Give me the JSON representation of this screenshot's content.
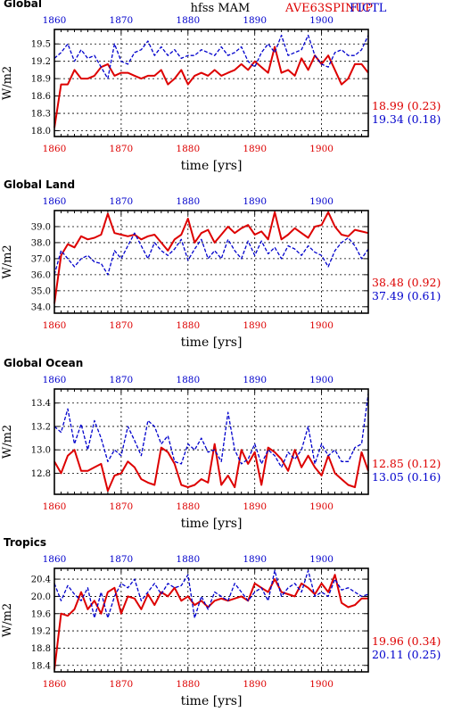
{
  "header": {
    "center": "hfss MAM",
    "right_red": "AVE63SPINUP",
    "right_blue": "FICTL"
  },
  "colors": {
    "red": "#dd0000",
    "blue": "#0000cc",
    "grid": "#000000"
  },
  "chart_data": [
    {
      "type": "line",
      "title": "Global",
      "xlabel": "time [yrs]",
      "ylabel": "W/m2",
      "xlim": [
        1860,
        1907
      ],
      "ylim": [
        17.9,
        19.75
      ],
      "xticks": [
        1860,
        1870,
        1880,
        1890,
        1900
      ],
      "yticks": [
        18.0,
        18.3,
        18.6,
        18.9,
        19.2,
        19.5
      ],
      "ytick_labels": [
        "18.0",
        "18.3",
        "18.6",
        "18.9",
        "19.2",
        "19.5"
      ],
      "grid": true,
      "x": [
        1860,
        1861,
        1862,
        1863,
        1864,
        1865,
        1866,
        1867,
        1868,
        1869,
        1870,
        1871,
        1872,
        1873,
        1874,
        1875,
        1876,
        1877,
        1878,
        1879,
        1880,
        1881,
        1882,
        1883,
        1884,
        1885,
        1886,
        1887,
        1888,
        1889,
        1890,
        1891,
        1892,
        1893,
        1894,
        1895,
        1896,
        1897,
        1898,
        1899,
        1900,
        1901,
        1902,
        1903,
        1904,
        1905,
        1906,
        1907
      ],
      "series": [
        {
          "name": "AVE63SPINUP",
          "color": "red",
          "stat": "18.99 (0.23)",
          "values": [
            18.05,
            18.8,
            18.8,
            19.05,
            18.9,
            18.9,
            18.95,
            19.1,
            19.15,
            18.95,
            19.0,
            19.0,
            18.95,
            18.9,
            18.95,
            18.95,
            19.05,
            18.8,
            18.9,
            19.05,
            18.8,
            18.95,
            19.0,
            18.95,
            19.05,
            18.95,
            19.0,
            19.05,
            19.15,
            19.05,
            19.2,
            19.1,
            19.0,
            19.45,
            19.0,
            19.05,
            18.95,
            19.25,
            19.05,
            19.3,
            19.15,
            19.3,
            19.05,
            18.8,
            18.9,
            19.15,
            19.15,
            19.0
          ]
        },
        {
          "name": "FICTL",
          "color": "blue",
          "stat": "19.34 (0.18)",
          "values": [
            19.25,
            19.35,
            19.5,
            19.2,
            19.4,
            19.25,
            19.3,
            19.1,
            18.9,
            19.5,
            19.2,
            19.15,
            19.35,
            19.4,
            19.55,
            19.3,
            19.45,
            19.3,
            19.4,
            19.25,
            19.3,
            19.3,
            19.4,
            19.35,
            19.3,
            19.45,
            19.3,
            19.35,
            19.45,
            19.2,
            19.1,
            19.35,
            19.5,
            19.35,
            19.65,
            19.3,
            19.35,
            19.4,
            19.65,
            19.3,
            19.15,
            19.1,
            19.35,
            19.4,
            19.3,
            19.3,
            19.4,
            19.65
          ]
        }
      ]
    },
    {
      "type": "line",
      "title": "Global Land",
      "xlabel": "time [yrs]",
      "ylabel": "W/m2",
      "xlim": [
        1860,
        1907
      ],
      "ylim": [
        33.6,
        40.0
      ],
      "xticks": [
        1860,
        1870,
        1880,
        1890,
        1900
      ],
      "yticks": [
        34.0,
        35.0,
        36.0,
        37.0,
        38.0,
        39.0
      ],
      "ytick_labels": [
        "34.0",
        "35.0",
        "36.0",
        "37.0",
        "38.0",
        "39.0"
      ],
      "grid": true,
      "x": [
        1860,
        1861,
        1862,
        1863,
        1864,
        1865,
        1866,
        1867,
        1868,
        1869,
        1870,
        1871,
        1872,
        1873,
        1874,
        1875,
        1876,
        1877,
        1878,
        1879,
        1880,
        1881,
        1882,
        1883,
        1884,
        1885,
        1886,
        1887,
        1888,
        1889,
        1890,
        1891,
        1892,
        1893,
        1894,
        1895,
        1896,
        1897,
        1898,
        1899,
        1900,
        1901,
        1902,
        1903,
        1904,
        1905,
        1906,
        1907
      ],
      "series": [
        {
          "name": "AVE63SPINUP",
          "color": "red",
          "stat": "38.48 (0.92)",
          "values": [
            34.2,
            37.2,
            37.9,
            37.7,
            38.4,
            38.2,
            38.3,
            38.5,
            39.8,
            38.6,
            38.5,
            38.4,
            38.5,
            38.2,
            38.4,
            38.5,
            38.0,
            37.5,
            38.2,
            38.5,
            39.5,
            38.0,
            38.6,
            38.8,
            38.0,
            38.5,
            39.0,
            38.6,
            38.9,
            39.1,
            38.5,
            38.7,
            38.2,
            39.9,
            38.2,
            38.5,
            38.9,
            38.6,
            38.3,
            39.0,
            39.1,
            39.9,
            39.0,
            38.5,
            38.4,
            38.8,
            38.7,
            38.6
          ]
        },
        {
          "name": "FICTL",
          "color": "blue",
          "stat": "37.49 (0.61)",
          "values": [
            36.0,
            37.5,
            37.0,
            36.5,
            37.0,
            37.2,
            36.8,
            36.7,
            36.0,
            37.5,
            37.0,
            37.8,
            38.6,
            37.8,
            37.0,
            38.0,
            37.5,
            37.2,
            37.6,
            38.2,
            36.9,
            37.6,
            38.2,
            37.0,
            37.5,
            37.0,
            38.2,
            37.5,
            37.0,
            38.1,
            37.2,
            38.1,
            37.3,
            37.7,
            37.0,
            37.8,
            37.6,
            37.2,
            37.8,
            37.4,
            37.2,
            36.5,
            37.5,
            38.0,
            38.3,
            37.8,
            37.0,
            37.6
          ]
        }
      ]
    },
    {
      "type": "line",
      "title": "Global Ocean",
      "xlabel": "time [yrs]",
      "ylabel": "W/m2",
      "xlim": [
        1860,
        1907
      ],
      "ylim": [
        12.62,
        13.52
      ],
      "xticks": [
        1860,
        1870,
        1880,
        1890,
        1900
      ],
      "yticks": [
        12.8,
        13.0,
        13.2,
        13.4
      ],
      "ytick_labels": [
        "12.8",
        "13.0",
        "13.2",
        "13.4"
      ],
      "grid": true,
      "x": [
        1860,
        1861,
        1862,
        1863,
        1864,
        1865,
        1866,
        1867,
        1868,
        1869,
        1870,
        1871,
        1872,
        1873,
        1874,
        1875,
        1876,
        1877,
        1878,
        1879,
        1880,
        1881,
        1882,
        1883,
        1884,
        1885,
        1886,
        1887,
        1888,
        1889,
        1890,
        1891,
        1892,
        1893,
        1894,
        1895,
        1896,
        1897,
        1898,
        1899,
        1900,
        1901,
        1902,
        1903,
        1904,
        1905,
        1906,
        1907
      ],
      "series": [
        {
          "name": "AVE63SPINUP",
          "color": "red",
          "stat": "12.85 (0.12)",
          "values": [
            12.9,
            12.8,
            12.95,
            13.0,
            12.82,
            12.82,
            12.85,
            12.88,
            12.65,
            12.78,
            12.8,
            12.9,
            12.85,
            12.75,
            12.72,
            12.7,
            13.02,
            12.98,
            12.88,
            12.7,
            12.68,
            12.7,
            12.75,
            12.72,
            13.05,
            12.7,
            12.78,
            12.68,
            13.0,
            12.88,
            12.98,
            12.7,
            13.02,
            12.98,
            12.92,
            12.82,
            13.0,
            12.85,
            12.95,
            12.85,
            12.78,
            12.95,
            12.8,
            12.75,
            12.7,
            12.68,
            12.98,
            12.82
          ]
        },
        {
          "name": "FICTL",
          "color": "blue",
          "stat": "13.05 (0.16)",
          "values": [
            13.2,
            13.15,
            13.35,
            13.05,
            13.22,
            13.0,
            13.25,
            13.1,
            12.9,
            13.0,
            12.95,
            13.2,
            13.08,
            12.95,
            13.25,
            13.2,
            13.05,
            13.12,
            12.9,
            12.88,
            13.05,
            13.0,
            13.1,
            12.98,
            13.0,
            12.9,
            13.32,
            13.0,
            12.88,
            12.92,
            13.05,
            12.88,
            13.0,
            12.95,
            12.85,
            12.98,
            12.92,
            13.0,
            13.2,
            12.88,
            13.05,
            12.95,
            13.0,
            12.9,
            12.9,
            13.02,
            13.05,
            13.48
          ]
        }
      ]
    },
    {
      "type": "line",
      "title": "Tropics",
      "xlabel": "time [yrs]",
      "ylabel": "W/m2",
      "xlim": [
        1860,
        1907
      ],
      "ylim": [
        18.25,
        20.65
      ],
      "xticks": [
        1860,
        1870,
        1880,
        1890,
        1900
      ],
      "yticks": [
        18.4,
        18.8,
        19.2,
        19.6,
        20.0,
        20.4
      ],
      "ytick_labels": [
        "18.4",
        "18.8",
        "19.2",
        "19.6",
        "20.0",
        "20.4"
      ],
      "grid": true,
      "x": [
        1860,
        1861,
        1862,
        1863,
        1864,
        1865,
        1866,
        1867,
        1868,
        1869,
        1870,
        1871,
        1872,
        1873,
        1874,
        1875,
        1876,
        1877,
        1878,
        1879,
        1880,
        1881,
        1882,
        1883,
        1884,
        1885,
        1886,
        1887,
        1888,
        1889,
        1890,
        1891,
        1892,
        1893,
        1894,
        1895,
        1896,
        1897,
        1898,
        1899,
        1900,
        1901,
        1902,
        1903,
        1904,
        1905,
        1906,
        1907
      ],
      "series": [
        {
          "name": "AVE63SPINUP",
          "color": "red",
          "stat": "19.96 (0.34)",
          "values": [
            18.3,
            19.6,
            19.55,
            19.7,
            20.1,
            19.7,
            19.9,
            19.6,
            20.1,
            20.2,
            19.6,
            20.0,
            19.95,
            19.7,
            20.05,
            19.8,
            20.1,
            20.0,
            20.2,
            19.9,
            20.0,
            19.8,
            19.9,
            19.75,
            19.9,
            19.95,
            19.9,
            19.95,
            20.0,
            19.9,
            20.3,
            20.2,
            20.1,
            20.4,
            20.1,
            20.05,
            20.0,
            20.3,
            20.2,
            20.05,
            20.3,
            20.1,
            20.5,
            19.85,
            19.75,
            19.8,
            19.95,
            19.95
          ]
        },
        {
          "name": "FICTL",
          "color": "blue",
          "stat": "20.11 (0.25)",
          "values": [
            20.3,
            19.9,
            20.25,
            20.05,
            19.9,
            20.2,
            19.5,
            20.1,
            19.5,
            20.0,
            20.3,
            20.2,
            20.4,
            19.9,
            20.1,
            20.3,
            20.05,
            20.3,
            20.2,
            20.25,
            20.5,
            19.5,
            20.0,
            19.7,
            20.1,
            20.0,
            19.9,
            20.3,
            20.1,
            19.9,
            20.1,
            20.2,
            19.9,
            20.6,
            20.0,
            20.2,
            20.3,
            20.1,
            20.6,
            20.0,
            20.1,
            20.0,
            20.4,
            20.15,
            20.2,
            20.1,
            20.0,
            20.05
          ]
        }
      ]
    }
  ]
}
